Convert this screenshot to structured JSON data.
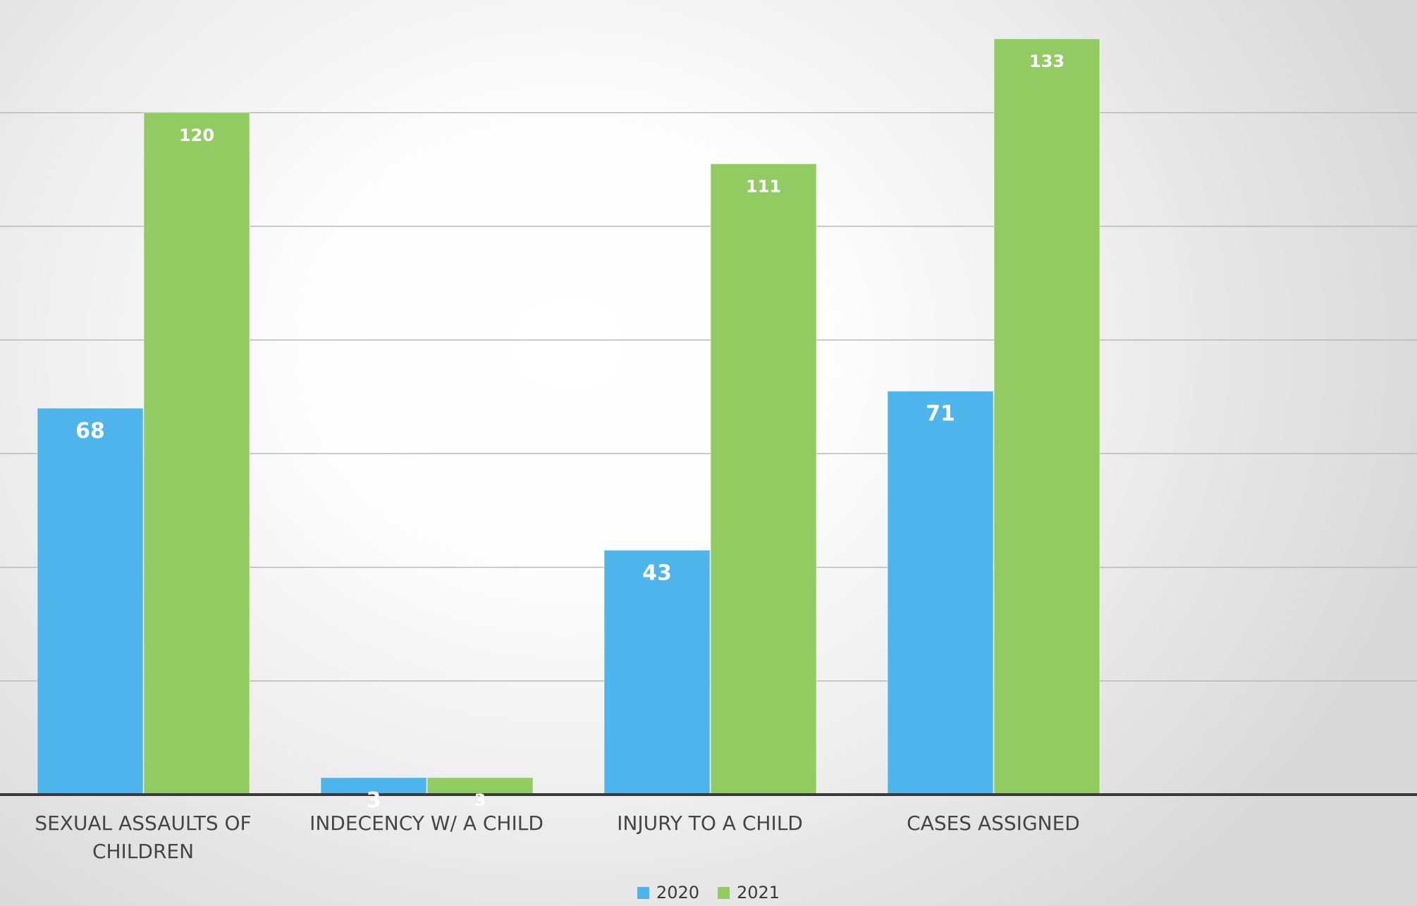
{
  "chart_data": {
    "type": "bar",
    "categories": [
      "SEXUAL ASSAULTS OF CHILDREN",
      "INDECENCY W/ A CHILD",
      "INJURY TO A CHILD",
      "CASES ASSIGNED"
    ],
    "series": [
      {
        "name": "2020",
        "color": "#4db5ec",
        "values": [
          68,
          3,
          43,
          71
        ]
      },
      {
        "name": "2021",
        "color": "#91cb62",
        "values": [
          120,
          3,
          111,
          133
        ]
      }
    ],
    "ylim": [
      0,
      140
    ],
    "y_gridline_step": 20,
    "grid": true,
    "legend_position": "bottom",
    "data_labels": true
  },
  "x_labels": [
    {
      "line1": "SEXUAL ASSAULTS OF",
      "line2": "CHILDREN"
    },
    {
      "line1": "INDECENCY W/ A CHILD",
      "line2": ""
    },
    {
      "line1": "INJURY TO A CHILD",
      "line2": ""
    },
    {
      "line1": "CASES ASSIGNED",
      "line2": ""
    }
  ],
  "legend": {
    "items": [
      {
        "label": "2020",
        "color": "#4db5ec"
      },
      {
        "label": "2021",
        "color": "#91cb62"
      }
    ]
  }
}
